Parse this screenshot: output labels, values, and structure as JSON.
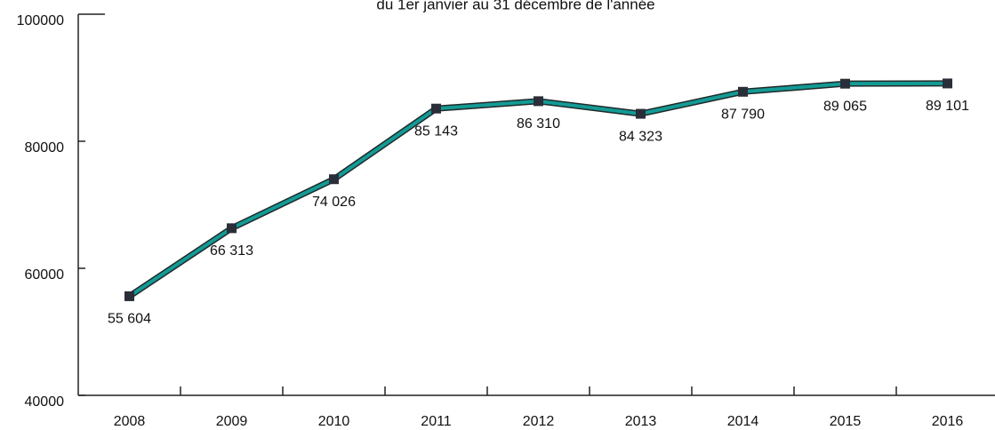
{
  "chart_data": {
    "type": "line",
    "subtitle": "du 1er janvier au 31 décembre de l'année",
    "categories": [
      "2008",
      "2009",
      "2010",
      "2011",
      "2012",
      "2013",
      "2014",
      "2015",
      "2016"
    ],
    "series": [
      {
        "color": "#149a94",
        "values": [
          55604,
          66313,
          74026,
          85143,
          86310,
          84323,
          87790,
          89065,
          89101
        ],
        "value_labels": [
          "55 604",
          "66 313",
          "74 026",
          "85 143",
          "86 310",
          "84 323",
          "87 790",
          "89 065",
          "89 101"
        ]
      }
    ],
    "ylim": [
      40000,
      100000
    ],
    "yticks": [
      40000,
      60000,
      80000,
      100000
    ]
  }
}
